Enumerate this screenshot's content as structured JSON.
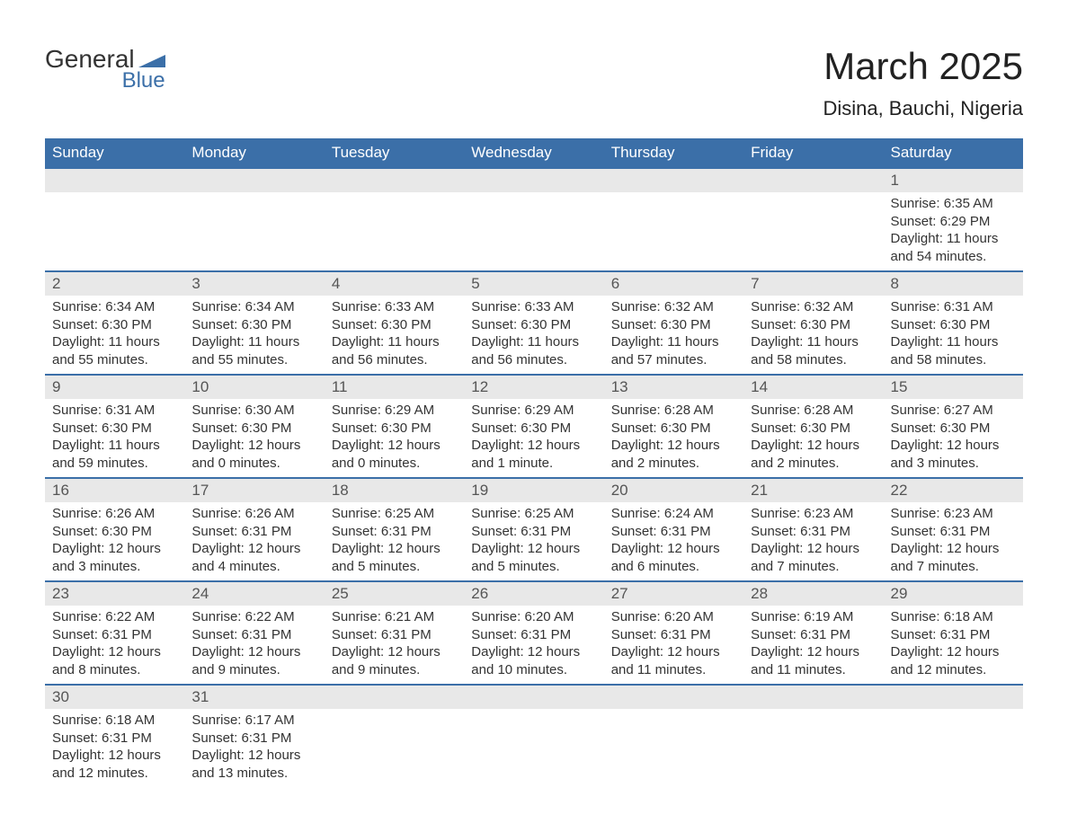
{
  "logo": {
    "text1": "General",
    "text2": "Blue"
  },
  "title": "March 2025",
  "location": "Disina, Bauchi, Nigeria",
  "colors": {
    "header_bg": "#3b6fa8",
    "header_text": "#ffffff",
    "daynum_bg": "#e8e8e8",
    "border": "#3b6fa8"
  },
  "weekdays": [
    "Sunday",
    "Monday",
    "Tuesday",
    "Wednesday",
    "Thursday",
    "Friday",
    "Saturday"
  ],
  "weeks": [
    [
      null,
      null,
      null,
      null,
      null,
      null,
      {
        "n": "1",
        "sr": "Sunrise: 6:35 AM",
        "ss": "Sunset: 6:29 PM",
        "d1": "Daylight: 11 hours",
        "d2": "and 54 minutes."
      }
    ],
    [
      {
        "n": "2",
        "sr": "Sunrise: 6:34 AM",
        "ss": "Sunset: 6:30 PM",
        "d1": "Daylight: 11 hours",
        "d2": "and 55 minutes."
      },
      {
        "n": "3",
        "sr": "Sunrise: 6:34 AM",
        "ss": "Sunset: 6:30 PM",
        "d1": "Daylight: 11 hours",
        "d2": "and 55 minutes."
      },
      {
        "n": "4",
        "sr": "Sunrise: 6:33 AM",
        "ss": "Sunset: 6:30 PM",
        "d1": "Daylight: 11 hours",
        "d2": "and 56 minutes."
      },
      {
        "n": "5",
        "sr": "Sunrise: 6:33 AM",
        "ss": "Sunset: 6:30 PM",
        "d1": "Daylight: 11 hours",
        "d2": "and 56 minutes."
      },
      {
        "n": "6",
        "sr": "Sunrise: 6:32 AM",
        "ss": "Sunset: 6:30 PM",
        "d1": "Daylight: 11 hours",
        "d2": "and 57 minutes."
      },
      {
        "n": "7",
        "sr": "Sunrise: 6:32 AM",
        "ss": "Sunset: 6:30 PM",
        "d1": "Daylight: 11 hours",
        "d2": "and 58 minutes."
      },
      {
        "n": "8",
        "sr": "Sunrise: 6:31 AM",
        "ss": "Sunset: 6:30 PM",
        "d1": "Daylight: 11 hours",
        "d2": "and 58 minutes."
      }
    ],
    [
      {
        "n": "9",
        "sr": "Sunrise: 6:31 AM",
        "ss": "Sunset: 6:30 PM",
        "d1": "Daylight: 11 hours",
        "d2": "and 59 minutes."
      },
      {
        "n": "10",
        "sr": "Sunrise: 6:30 AM",
        "ss": "Sunset: 6:30 PM",
        "d1": "Daylight: 12 hours",
        "d2": "and 0 minutes."
      },
      {
        "n": "11",
        "sr": "Sunrise: 6:29 AM",
        "ss": "Sunset: 6:30 PM",
        "d1": "Daylight: 12 hours",
        "d2": "and 0 minutes."
      },
      {
        "n": "12",
        "sr": "Sunrise: 6:29 AM",
        "ss": "Sunset: 6:30 PM",
        "d1": "Daylight: 12 hours",
        "d2": "and 1 minute."
      },
      {
        "n": "13",
        "sr": "Sunrise: 6:28 AM",
        "ss": "Sunset: 6:30 PM",
        "d1": "Daylight: 12 hours",
        "d2": "and 2 minutes."
      },
      {
        "n": "14",
        "sr": "Sunrise: 6:28 AM",
        "ss": "Sunset: 6:30 PM",
        "d1": "Daylight: 12 hours",
        "d2": "and 2 minutes."
      },
      {
        "n": "15",
        "sr": "Sunrise: 6:27 AM",
        "ss": "Sunset: 6:30 PM",
        "d1": "Daylight: 12 hours",
        "d2": "and 3 minutes."
      }
    ],
    [
      {
        "n": "16",
        "sr": "Sunrise: 6:26 AM",
        "ss": "Sunset: 6:30 PM",
        "d1": "Daylight: 12 hours",
        "d2": "and 3 minutes."
      },
      {
        "n": "17",
        "sr": "Sunrise: 6:26 AM",
        "ss": "Sunset: 6:31 PM",
        "d1": "Daylight: 12 hours",
        "d2": "and 4 minutes."
      },
      {
        "n": "18",
        "sr": "Sunrise: 6:25 AM",
        "ss": "Sunset: 6:31 PM",
        "d1": "Daylight: 12 hours",
        "d2": "and 5 minutes."
      },
      {
        "n": "19",
        "sr": "Sunrise: 6:25 AM",
        "ss": "Sunset: 6:31 PM",
        "d1": "Daylight: 12 hours",
        "d2": "and 5 minutes."
      },
      {
        "n": "20",
        "sr": "Sunrise: 6:24 AM",
        "ss": "Sunset: 6:31 PM",
        "d1": "Daylight: 12 hours",
        "d2": "and 6 minutes."
      },
      {
        "n": "21",
        "sr": "Sunrise: 6:23 AM",
        "ss": "Sunset: 6:31 PM",
        "d1": "Daylight: 12 hours",
        "d2": "and 7 minutes."
      },
      {
        "n": "22",
        "sr": "Sunrise: 6:23 AM",
        "ss": "Sunset: 6:31 PM",
        "d1": "Daylight: 12 hours",
        "d2": "and 7 minutes."
      }
    ],
    [
      {
        "n": "23",
        "sr": "Sunrise: 6:22 AM",
        "ss": "Sunset: 6:31 PM",
        "d1": "Daylight: 12 hours",
        "d2": "and 8 minutes."
      },
      {
        "n": "24",
        "sr": "Sunrise: 6:22 AM",
        "ss": "Sunset: 6:31 PM",
        "d1": "Daylight: 12 hours",
        "d2": "and 9 minutes."
      },
      {
        "n": "25",
        "sr": "Sunrise: 6:21 AM",
        "ss": "Sunset: 6:31 PM",
        "d1": "Daylight: 12 hours",
        "d2": "and 9 minutes."
      },
      {
        "n": "26",
        "sr": "Sunrise: 6:20 AM",
        "ss": "Sunset: 6:31 PM",
        "d1": "Daylight: 12 hours",
        "d2": "and 10 minutes."
      },
      {
        "n": "27",
        "sr": "Sunrise: 6:20 AM",
        "ss": "Sunset: 6:31 PM",
        "d1": "Daylight: 12 hours",
        "d2": "and 11 minutes."
      },
      {
        "n": "28",
        "sr": "Sunrise: 6:19 AM",
        "ss": "Sunset: 6:31 PM",
        "d1": "Daylight: 12 hours",
        "d2": "and 11 minutes."
      },
      {
        "n": "29",
        "sr": "Sunrise: 6:18 AM",
        "ss": "Sunset: 6:31 PM",
        "d1": "Daylight: 12 hours",
        "d2": "and 12 minutes."
      }
    ],
    [
      {
        "n": "30",
        "sr": "Sunrise: 6:18 AM",
        "ss": "Sunset: 6:31 PM",
        "d1": "Daylight: 12 hours",
        "d2": "and 12 minutes."
      },
      {
        "n": "31",
        "sr": "Sunrise: 6:17 AM",
        "ss": "Sunset: 6:31 PM",
        "d1": "Daylight: 12 hours",
        "d2": "and 13 minutes."
      },
      null,
      null,
      null,
      null,
      null
    ]
  ]
}
